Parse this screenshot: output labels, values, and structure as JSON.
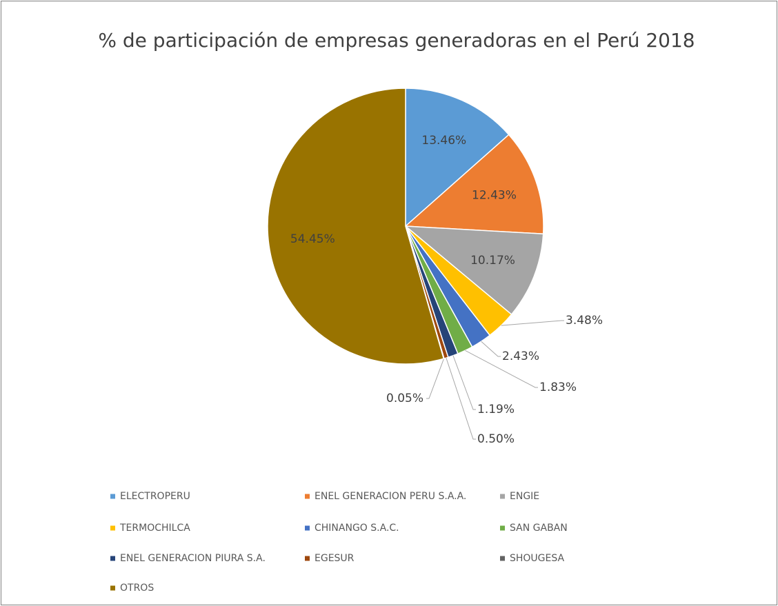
{
  "chart_data": {
    "type": "pie",
    "title": "% de participación de empresas generadoras en el Perú 2018",
    "categories": [
      "ELECTROPERU",
      "ENEL GENERACION PERU S.A.A.",
      "ENGIE",
      "TERMOCHILCA",
      "CHINANGO S.A.C.",
      "SAN GABAN",
      "ENEL GENERACION PIURA S.A.",
      "EGESUR",
      "SHOUGESA",
      "OTROS"
    ],
    "values": [
      13.46,
      12.43,
      10.17,
      3.48,
      2.43,
      1.83,
      1.19,
      0.5,
      0.05,
      54.45
    ],
    "value_labels": [
      "13.46%",
      "12.43%",
      "10.17%",
      "3.48%",
      "2.43%",
      "1.83%",
      "1.19%",
      "0.50%",
      "0.05%",
      "54.45%"
    ],
    "colors": [
      "#5b9bd5",
      "#ed7d31",
      "#a5a5a5",
      "#ffc000",
      "#4472c4",
      "#70ad47",
      "#264478",
      "#9e480e",
      "#636363",
      "#997300"
    ],
    "legend": "bottom"
  }
}
